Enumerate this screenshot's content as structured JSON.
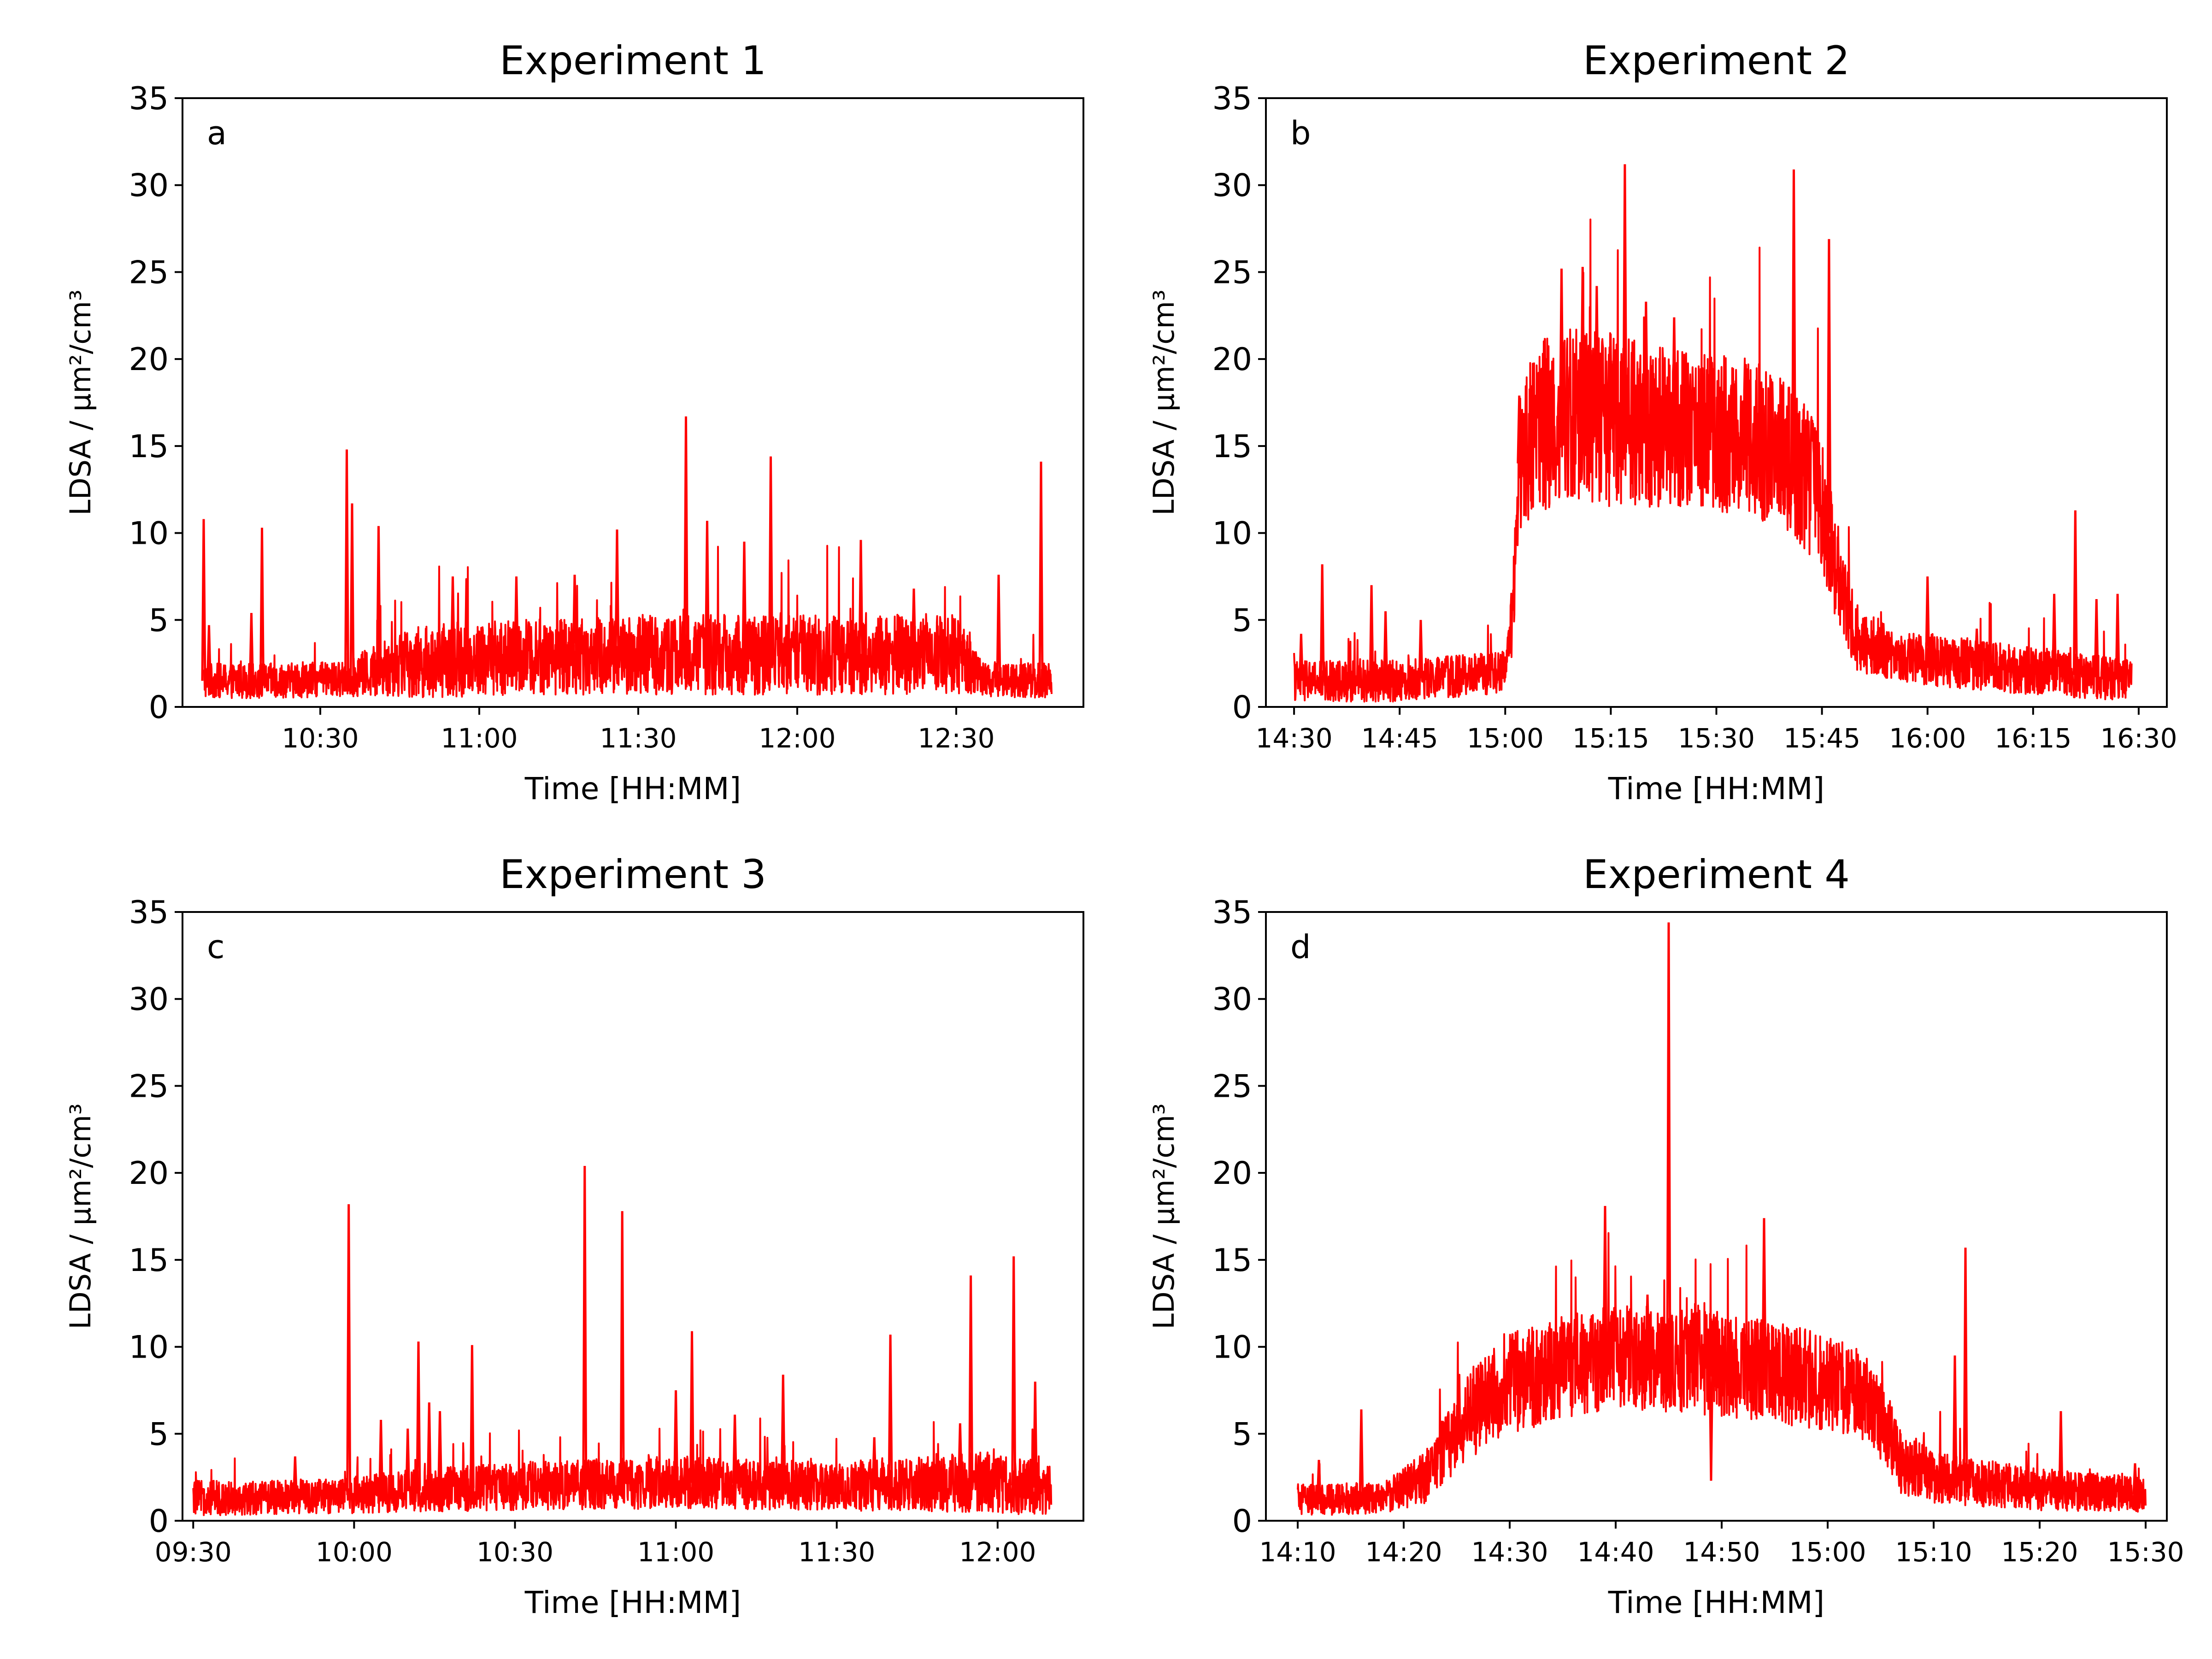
{
  "colors": {
    "line": "#ff0000",
    "axes": "#000000",
    "background": "#ffffff"
  },
  "chart_data": [
    {
      "type": "line",
      "title": "Experiment 1",
      "panel_label": "a",
      "xlabel": "Time [HH:MM]",
      "ylabel": "LDSA / μm²/cm³",
      "xlim": [
        "10:04",
        "12:54"
      ],
      "ylim": [
        0,
        35
      ],
      "yticks": [
        "0",
        "5",
        "10",
        "15",
        "20",
        "25",
        "30",
        "35"
      ],
      "xticks": [
        "10:30",
        "11:00",
        "11:30",
        "12:00",
        "12:30"
      ],
      "data_range": [
        "10:08",
        "12:48"
      ],
      "series": [
        {
          "x": [
            "10:08",
            "10:20",
            "10:35",
            "10:45",
            "11:00",
            "11:15",
            "11:30",
            "11:45",
            "12:00",
            "12:15",
            "12:30",
            "12:35",
            "12:48"
          ],
          "baseline": [
            1.5,
            1.5,
            1.6,
            2.5,
            2.8,
            2.9,
            3.0,
            3.0,
            3.0,
            3.0,
            3.0,
            1.6,
            1.5
          ],
          "noise": [
            1.0,
            1.0,
            1.0,
            2.0,
            2.2,
            2.2,
            2.3,
            2.3,
            2.3,
            2.3,
            2.3,
            1.0,
            1.0
          ],
          "spikes": [
            [
              "10:08",
              10.8
            ],
            [
              "10:09",
              4.7
            ],
            [
              "10:17",
              5.4
            ],
            [
              "10:19",
              10.3
            ],
            [
              "10:35",
              14.8
            ],
            [
              "10:36",
              11.7
            ],
            [
              "10:41",
              10.4
            ],
            [
              "10:55",
              7.5
            ],
            [
              "11:07",
              7.5
            ],
            [
              "11:18",
              7.6
            ],
            [
              "11:26",
              10.2
            ],
            [
              "11:39",
              16.7
            ],
            [
              "11:43",
              10.7
            ],
            [
              "11:50",
              9.5
            ],
            [
              "11:55",
              14.4
            ],
            [
              "12:12",
              9.6
            ],
            [
              "12:22",
              6.8
            ],
            [
              "12:38",
              7.6
            ],
            [
              "12:46",
              14.1
            ]
          ]
        }
      ]
    },
    {
      "type": "line",
      "title": "Experiment 2",
      "panel_label": "b",
      "xlabel": "Time [HH:MM]",
      "ylabel": "LDSA / μm²/cm³",
      "xlim": [
        "14:26",
        "16:34"
      ],
      "ylim": [
        0,
        35
      ],
      "yticks": [
        "0",
        "5",
        "10",
        "15",
        "20",
        "25",
        "30",
        "35"
      ],
      "xticks": [
        "14:30",
        "14:45",
        "15:00",
        "15:15",
        "15:30",
        "15:45",
        "16:00",
        "16:15",
        "16:30"
      ],
      "data_range": [
        "14:30",
        "16:29"
      ],
      "series": [
        {
          "x": [
            "14:30",
            "14:45",
            "15:00",
            "15:01",
            "15:02",
            "15:04",
            "15:10",
            "15:15",
            "15:25",
            "15:35",
            "15:40",
            "15:45",
            "15:47",
            "15:50",
            "15:55",
            "16:05",
            "16:29"
          ],
          "baseline": [
            1.5,
            1.5,
            2.0,
            5.0,
            14.0,
            16.0,
            17.0,
            16.5,
            16.0,
            15.5,
            14.5,
            12.0,
            8.0,
            4.0,
            3.0,
            2.5,
            1.5
          ],
          "noise": [
            1.2,
            1.2,
            1.2,
            2.0,
            4.0,
            5.0,
            5.0,
            5.0,
            4.5,
            4.5,
            4.5,
            4.0,
            3.0,
            2.0,
            1.5,
            1.5,
            1.2
          ],
          "spikes": [
            [
              "14:31",
              4.2
            ],
            [
              "14:34",
              8.2
            ],
            [
              "14:41",
              7.0
            ],
            [
              "14:43",
              5.5
            ],
            [
              "14:48",
              5.0
            ],
            [
              "15:02",
              17.9
            ],
            [
              "15:08",
              25.2
            ],
            [
              "15:11",
              25.3
            ],
            [
              "15:13",
              24.2
            ],
            [
              "15:17",
              31.2
            ],
            [
              "15:20",
              23.3
            ],
            [
              "15:24",
              22.4
            ],
            [
              "15:41",
              30.9
            ],
            [
              "15:46",
              26.9
            ],
            [
              "16:00",
              7.5
            ],
            [
              "16:07",
              4.5
            ],
            [
              "16:18",
              6.5
            ],
            [
              "16:21",
              11.3
            ],
            [
              "16:24",
              6.2
            ],
            [
              "16:27",
              6.5
            ]
          ]
        }
      ]
    },
    {
      "type": "line",
      "title": "Experiment 3",
      "panel_label": "c",
      "xlabel": "Time [HH:MM]",
      "ylabel": "LDSA / μm²/cm³",
      "xlim": [
        "09:28",
        "12:16"
      ],
      "ylim": [
        0,
        35
      ],
      "yticks": [
        "0",
        "5",
        "10",
        "15",
        "20",
        "25",
        "30",
        "35"
      ],
      "xticks": [
        "09:30",
        "10:00",
        "10:30",
        "11:00",
        "11:30",
        "12:00"
      ],
      "data_range": [
        "09:30",
        "12:10"
      ],
      "series": [
        {
          "x": [
            "09:30",
            "09:55",
            "10:10",
            "10:30",
            "11:00",
            "11:30",
            "11:45",
            "11:55",
            "12:10"
          ],
          "baseline": [
            1.3,
            1.4,
            1.7,
            2.0,
            2.2,
            2.0,
            2.1,
            2.3,
            1.8
          ],
          "noise": [
            1.0,
            1.0,
            1.2,
            1.4,
            1.5,
            1.4,
            1.6,
            1.8,
            1.5
          ],
          "spikes": [
            [
              "09:49",
              3.7
            ],
            [
              "09:59",
              18.2
            ],
            [
              "10:05",
              5.8
            ],
            [
              "10:10",
              5.3
            ],
            [
              "10:12",
              10.3
            ],
            [
              "10:14",
              6.8
            ],
            [
              "10:16",
              6.3
            ],
            [
              "10:22",
              10.1
            ],
            [
              "10:43",
              20.4
            ],
            [
              "10:50",
              17.8
            ],
            [
              "11:00",
              7.5
            ],
            [
              "11:03",
              10.9
            ],
            [
              "11:11",
              6.1
            ],
            [
              "11:20",
              8.4
            ],
            [
              "11:37",
              4.8
            ],
            [
              "11:40",
              10.7
            ],
            [
              "11:53",
              5.6
            ],
            [
              "11:55",
              14.1
            ],
            [
              "12:03",
              15.2
            ],
            [
              "12:07",
              8.0
            ]
          ]
        }
      ]
    },
    {
      "type": "line",
      "title": "Experiment 4",
      "panel_label": "d",
      "xlabel": "Time [HH:MM]",
      "ylabel": "LDSA / μm²/cm³",
      "xlim": [
        "14:07",
        "15:32"
      ],
      "ylim": [
        0,
        35
      ],
      "yticks": [
        "0",
        "5",
        "10",
        "15",
        "20",
        "25",
        "30",
        "35"
      ],
      "xticks": [
        "14:10",
        "14:20",
        "14:30",
        "14:40",
        "14:50",
        "15:00",
        "15:10",
        "15:20",
        "15:30"
      ],
      "data_range": [
        "14:10",
        "15:30"
      ],
      "series": [
        {
          "x": [
            "14:10",
            "14:18",
            "14:22",
            "14:26",
            "14:30",
            "14:40",
            "14:50",
            "15:00",
            "15:04",
            "15:07",
            "15:10",
            "15:20",
            "15:30"
          ],
          "baseline": [
            1.2,
            1.3,
            2.5,
            6.0,
            8.0,
            9.5,
            9.0,
            8.0,
            7.0,
            3.5,
            2.5,
            1.8,
            1.5
          ],
          "noise": [
            0.9,
            0.9,
            1.5,
            2.5,
            3.0,
            3.0,
            3.0,
            2.8,
            2.5,
            2.0,
            1.5,
            1.2,
            1.0
          ],
          "spikes": [
            [
              "14:12",
              3.5
            ],
            [
              "14:16",
              6.4
            ],
            [
              "14:39",
              18.1
            ],
            [
              "14:43",
              13.0
            ],
            [
              "14:45",
              34.4
            ],
            [
              "14:49",
              2.3
            ],
            [
              "14:54",
              17.4
            ],
            [
              "15:12",
              9.5
            ],
            [
              "15:13",
              15.7
            ],
            [
              "15:22",
              6.3
            ],
            [
              "15:29",
              3.3
            ]
          ]
        }
      ]
    }
  ]
}
